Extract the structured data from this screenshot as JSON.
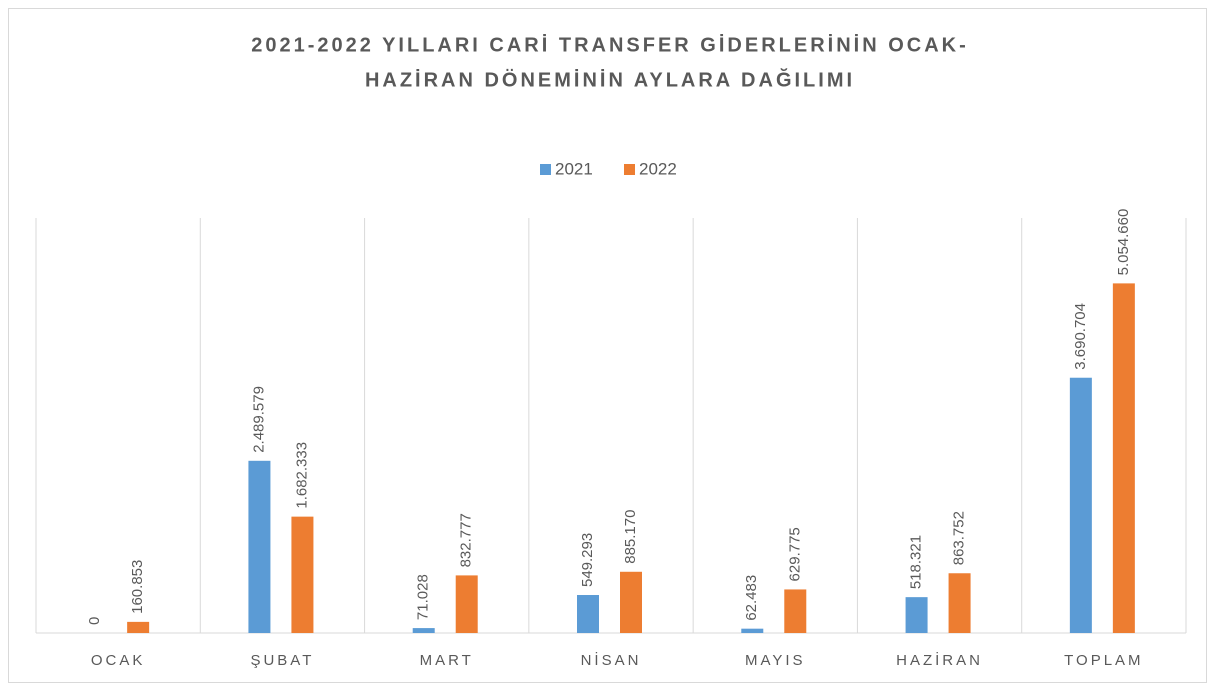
{
  "chart_data": {
    "type": "bar",
    "title": "2021-2022 YILLARI CARİ TRANSFER GİDERLERİNİN OCAK-",
    "subtitle": "HAZİRAN DÖNEMİNİN AYLARA DAĞILIMI",
    "categories": [
      "OCAK",
      "ŞUBAT",
      "MART",
      "NİSAN",
      "MAYIS",
      "HAZİRAN",
      "TOPLAM"
    ],
    "series": [
      {
        "name": "2021",
        "color": "#5b9bd5",
        "values": [
          0,
          2489579,
          71028,
          549293,
          62483,
          518321,
          3690704
        ],
        "value_labels": [
          "0",
          "2.489.579",
          "71.028",
          "549.293",
          "62.483",
          "518.321",
          "3.690.704"
        ]
      },
      {
        "name": "2022",
        "color": "#ed7d31",
        "values": [
          160853,
          1682333,
          832777,
          885170,
          629775,
          863752,
          5054660
        ],
        "value_labels": [
          "160.853",
          "1.682.333",
          "832.777",
          "885.170",
          "629.775",
          "863.752",
          "5.054.660"
        ]
      }
    ],
    "ylim": [
      0,
      6000000
    ],
    "legend": "top"
  }
}
